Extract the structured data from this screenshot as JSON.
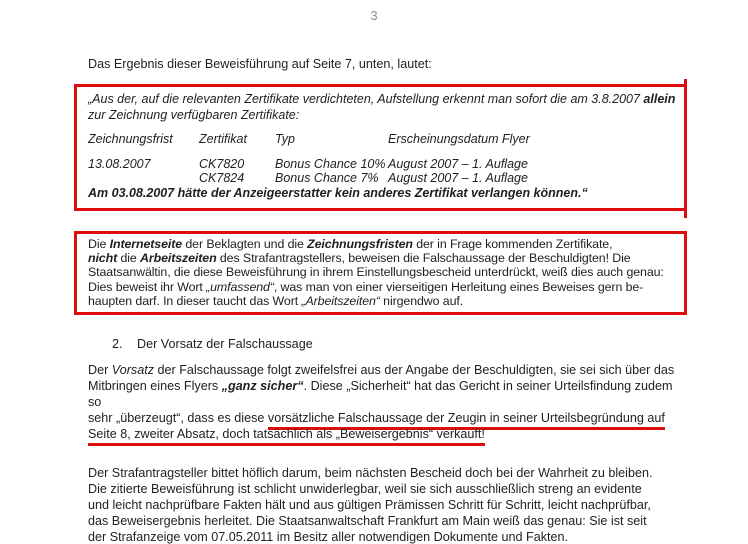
{
  "page_number": "3",
  "colors": {
    "annotation_red": "#dd0d0d",
    "page_number_gray": "#8a90a4",
    "text": "#1f1f1f"
  },
  "intro": [
    {
      "t": "Das Ergebnis dieser Beweisführung auf Seite 7, unten, lautet:",
      "s": ""
    }
  ],
  "box1": {
    "quote": [
      {
        "t": "„Aus der, auf die relevanten Zertifikate verdichteten, Aufstellung erkennt man sofort die am 3.8.2007 ",
        "s": "i"
      },
      {
        "t": "allein",
        "s": "bi"
      },
      {
        "t": "\nzur Zeichnung verfügbaren Zertifikate:",
        "s": "i"
      }
    ],
    "table": {
      "headers": [
        "Zeichnungsfrist",
        "Zertifikat",
        "Typ",
        "Erscheinungsdatum Flyer"
      ],
      "rows": [
        [
          "13.08.2007",
          "CK7820",
          "Bonus Chance 10%",
          "August 2007 – 1. Auflage"
        ],
        [
          "",
          "CK7824",
          "Bonus Chance 7%",
          "August 2007 – 1. Auflage"
        ]
      ]
    },
    "conclusion": [
      {
        "t": "Am 03.08.2007 hätte der Anzeigeerstatter kein anderes Zertifikat verlangen können.",
        "s": "bi"
      },
      {
        "t": "“",
        "s": "i"
      }
    ]
  },
  "box2": {
    "text": [
      {
        "t": "Die ",
        "s": ""
      },
      {
        "t": "Internetseite",
        "s": "bi"
      },
      {
        "t": " der Beklagten und die ",
        "s": ""
      },
      {
        "t": "Zeichnungsfristen",
        "s": "bi"
      },
      {
        "t": " der in Frage kommenden Zertifikate,\n",
        "s": ""
      },
      {
        "t": "nicht",
        "s": "bi"
      },
      {
        "t": " die ",
        "s": ""
      },
      {
        "t": "Arbeitszeiten",
        "s": "bi"
      },
      {
        "t": " des Strafantragstellers, beweisen die Falschaussage der Beschuldigten! Die\nStaatsanwältin, die diese Beweisführung in ihrem Einstellungsbescheid unterdrückt, weiß dies auch genau:\nDies beweist ihr Wort ",
        "s": ""
      },
      {
        "t": "„umfassend“",
        "s": "i"
      },
      {
        "t": ", was man von einer vierseitigen Herleitung eines Beweises gern be-\nhaupten darf. In dieser taucht das Wort ",
        "s": ""
      },
      {
        "t": "„Arbeitszeiten“",
        "s": "i"
      },
      {
        "t": " nirgendwo auf.",
        "s": ""
      }
    ]
  },
  "section2": {
    "number": "2.",
    "title": "Der Vorsatz der Falschaussage"
  },
  "para_vorsatz": [
    {
      "t": "Der ",
      "s": ""
    },
    {
      "t": "Vorsatz",
      "s": "i"
    },
    {
      "t": " der Falschaussage folgt zweifelsfrei aus der Angabe der Beschuldigten, sie sei sich über das\nMitbringen eines Flyers ",
      "s": ""
    },
    {
      "t": "„ganz sicher“",
      "s": "bi"
    },
    {
      "t": ". Diese „Sicherheit“ hat das Gericht in seiner Urteilsfindung zudem so\nsehr „überzeugt“, dass es diese ",
      "s": ""
    },
    {
      "t": "vorsätzliche Falschaussage der Zeugin in seiner Urteilsbegründung auf\nSeite 8, zweiter Absatz, doch tatsächlich als „Beweisergebnis“ verkauft!",
      "s": "u"
    }
  ],
  "para_final": [
    {
      "t": "Der Strafantragsteller bittet höflich darum, beim nächsten Bescheid doch bei der Wahrheit zu bleiben.\nDie zitierte Beweisführung ist schlicht unwiderlegbar, weil sie sich ausschließlich streng an evidente\nund leicht nachprüfbare Fakten hält und aus gültigen Prämissen Schritt für Schritt, leicht nachprüfbar,\ndas Beweisergebnis herleitet. Die Staatsanwaltschaft Frankfurt am Main weiß das genau: Sie ist seit\nder Strafanzeige vom 07.05.2011 im Besitz aller notwendigen Dokumente und Fakten.",
      "s": ""
    }
  ]
}
